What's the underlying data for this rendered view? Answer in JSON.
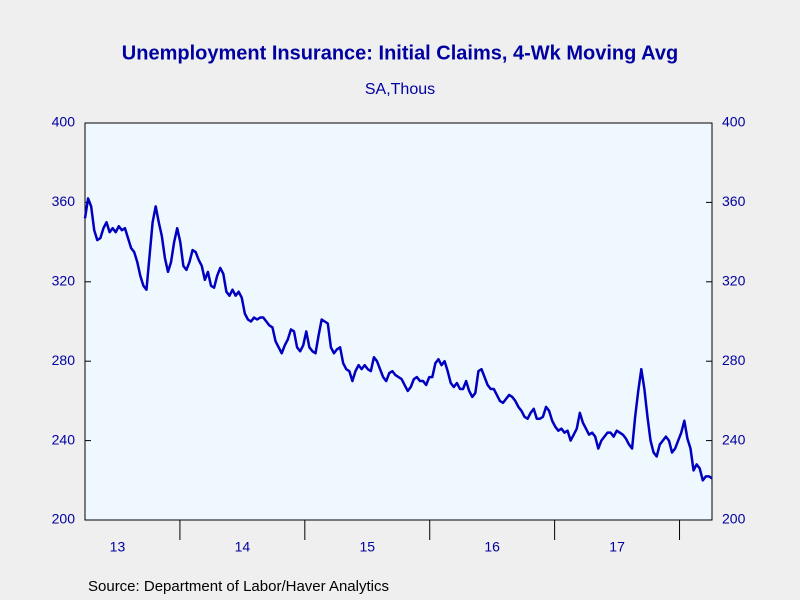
{
  "chart_data": {
    "type": "line",
    "title": "Unemployment Insurance: Initial Claims, 4-Wk Moving Avg",
    "subtitle": "SA,Thous",
    "source": "Source:  Department of Labor/Haver Analytics",
    "color": "#0000c0",
    "xlim": [
      2013.24,
      2018.26
    ],
    "xticks": [
      2014,
      2015,
      2016,
      2017,
      2018
    ],
    "xtick_labels": [
      {
        "value": 2013.5,
        "label": "13"
      },
      {
        "value": 2014.5,
        "label": "14"
      },
      {
        "value": 2015.5,
        "label": "15"
      },
      {
        "value": 2016.5,
        "label": "16"
      },
      {
        "value": 2017.5,
        "label": "17"
      }
    ],
    "ylim": [
      200,
      400
    ],
    "yticks": [
      200,
      240,
      280,
      320,
      360,
      400
    ],
    "values": [
      352,
      362,
      358,
      346,
      341,
      342,
      347,
      350,
      345,
      347,
      345,
      348,
      346,
      347,
      342,
      337,
      335,
      330,
      323,
      318,
      316,
      333,
      350,
      358,
      350,
      343,
      332,
      325,
      330,
      340,
      347,
      340,
      328,
      326,
      330,
      336,
      335,
      331,
      328,
      321,
      325,
      318,
      317,
      323,
      327,
      324,
      315,
      313,
      316,
      313,
      315,
      312,
      304,
      301,
      300,
      302,
      301,
      302,
      302,
      300,
      298,
      297,
      290,
      287,
      284,
      288,
      291,
      296,
      295,
      287,
      285,
      288,
      295,
      287,
      285,
      284,
      293,
      301,
      300,
      299,
      287,
      284,
      286,
      287,
      279,
      276,
      275,
      270,
      275,
      278,
      276,
      278,
      276,
      275,
      282,
      280,
      276,
      272,
      270,
      274,
      275,
      273,
      272,
      271,
      268,
      265,
      267,
      271,
      272,
      270,
      270,
      268,
      272,
      272,
      279,
      281,
      278,
      280,
      275,
      269,
      267,
      269,
      266,
      266,
      270,
      265,
      262,
      264,
      275,
      276,
      272,
      268,
      266,
      266,
      263,
      260,
      259,
      261,
      263,
      262,
      260,
      257,
      255,
      252,
      251,
      254,
      256,
      251,
      251,
      252,
      257,
      255,
      250,
      247,
      245,
      246,
      244,
      245,
      240,
      243,
      246,
      254,
      249,
      246,
      243,
      244,
      242,
      236,
      240,
      242,
      244,
      244,
      242,
      245,
      244,
      243,
      241,
      238,
      236,
      252,
      265,
      276,
      266,
      252,
      240,
      234,
      232,
      238,
      240,
      242,
      240,
      234,
      236,
      240,
      244,
      250,
      241,
      236,
      225,
      228,
      226,
      220,
      222,
      222,
      221
    ]
  }
}
